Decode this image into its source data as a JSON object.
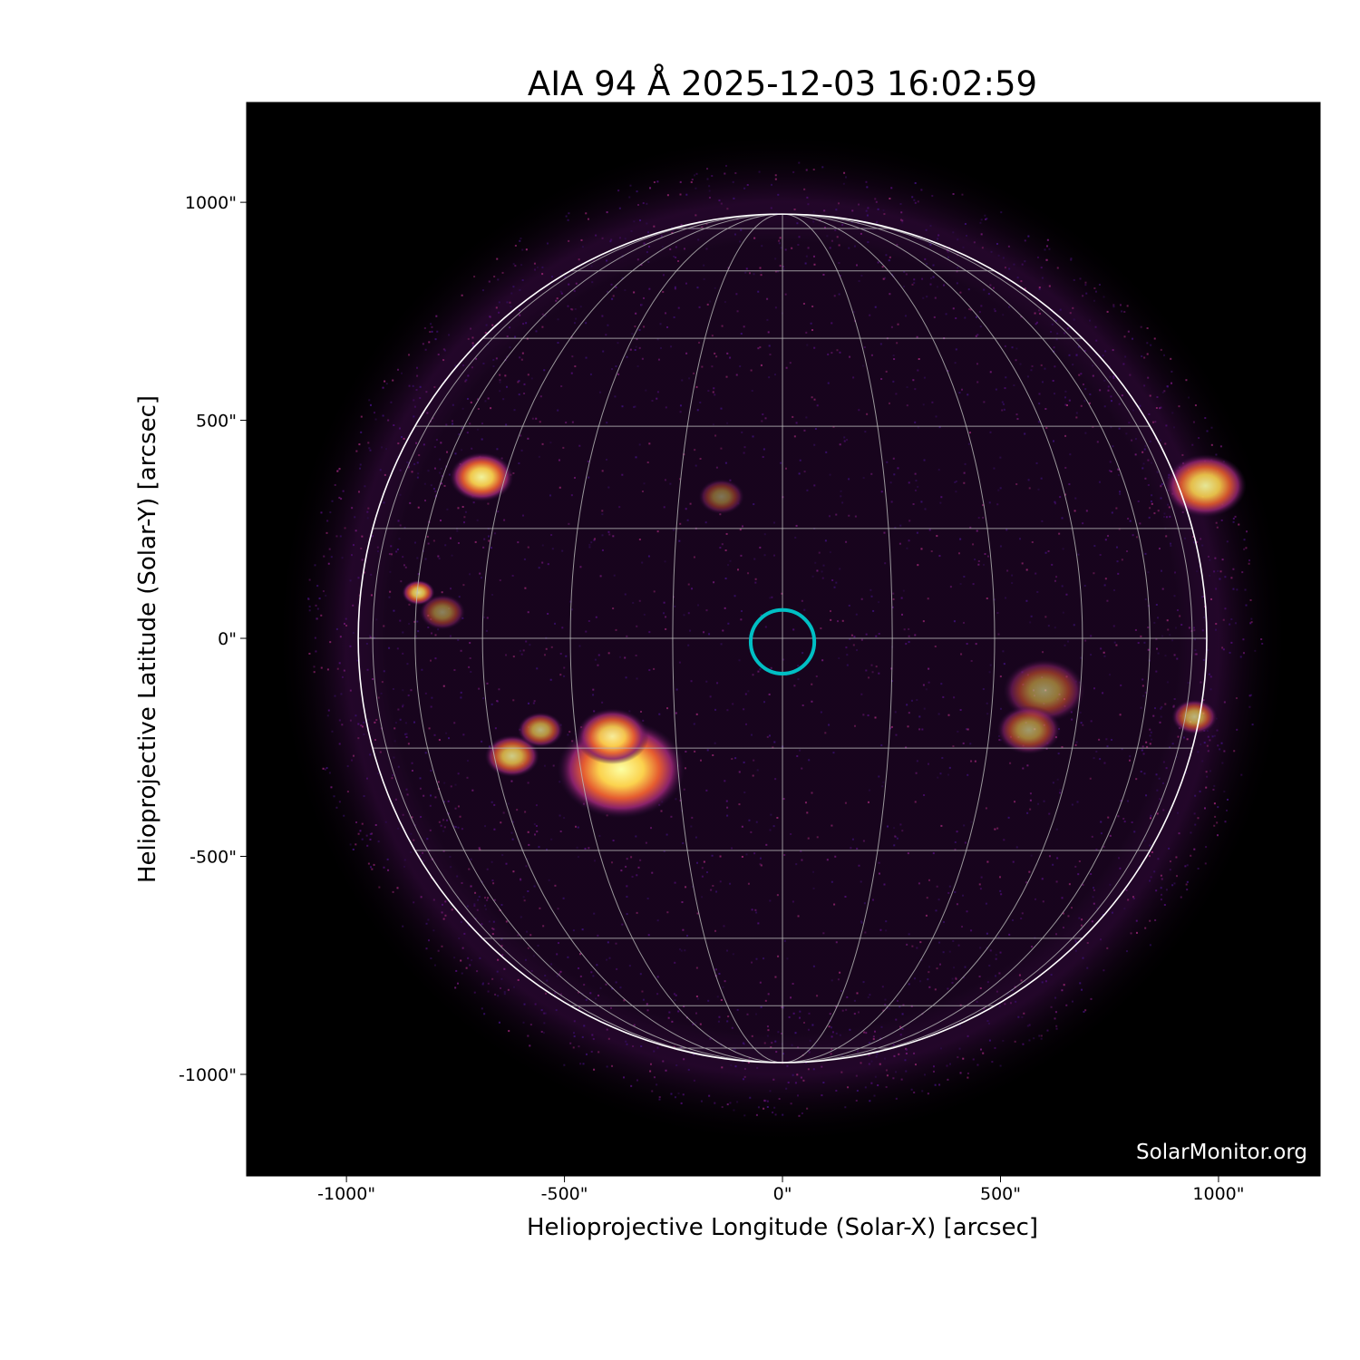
{
  "chart_data": {
    "type": "image",
    "title": "AIA 94 Å 2025-12-03 16:02:59",
    "xlabel": "Helioprojective Longitude (Solar-X) [arcsec]",
    "ylabel": "Helioprojective Latitude (Solar-Y) [arcsec]",
    "xlim": [
      -1229,
      1233
    ],
    "ylim": [
      -1233,
      1229
    ],
    "x_ticks": [
      {
        "value": -1000,
        "label": "-1000\""
      },
      {
        "value": -500,
        "label": "-500\""
      },
      {
        "value": 0,
        "label": "0\""
      },
      {
        "value": 500,
        "label": "500\""
      },
      {
        "value": 1000,
        "label": "1000\""
      }
    ],
    "y_ticks": [
      {
        "value": 1000,
        "label": "1000\""
      },
      {
        "value": 500,
        "label": "500\""
      },
      {
        "value": 0,
        "label": "0\""
      },
      {
        "value": -500,
        "label": "-500\""
      },
      {
        "value": -1000,
        "label": "-1000\""
      }
    ],
    "solar_radius_arcsec": 973,
    "grid_spacing_deg": 15,
    "colormap": "inferno-like (black → purple → orange → yellow)",
    "background_color": "#000000",
    "limb_color": "#ffffff",
    "grid_color": "#bbbbbb",
    "marker": {
      "type": "circle",
      "x": 0,
      "y": -8,
      "radius": 73,
      "color": "#00bfc4"
    },
    "bright_regions": [
      {
        "x": -370,
        "y": -300,
        "size": 70,
        "intensity": 1.0
      },
      {
        "x": -390,
        "y": -225,
        "size": 40,
        "intensity": 0.9
      },
      {
        "x": -620,
        "y": -270,
        "size": 30,
        "intensity": 0.8
      },
      {
        "x": -555,
        "y": -210,
        "size": 25,
        "intensity": 0.7
      },
      {
        "x": -690,
        "y": 370,
        "size": 35,
        "intensity": 0.95
      },
      {
        "x": -835,
        "y": 105,
        "size": 18,
        "intensity": 0.85
      },
      {
        "x": -780,
        "y": 60,
        "size": 25,
        "intensity": 0.5
      },
      {
        "x": -140,
        "y": 325,
        "size": 25,
        "intensity": 0.45
      },
      {
        "x": 970,
        "y": 350,
        "size": 45,
        "intensity": 0.9
      },
      {
        "x": 600,
        "y": -120,
        "size": 45,
        "intensity": 0.55
      },
      {
        "x": 565,
        "y": -210,
        "size": 35,
        "intensity": 0.6
      },
      {
        "x": 945,
        "y": -180,
        "size": 25,
        "intensity": 0.7
      }
    ]
  },
  "watermark": "SolarMonitor.org"
}
